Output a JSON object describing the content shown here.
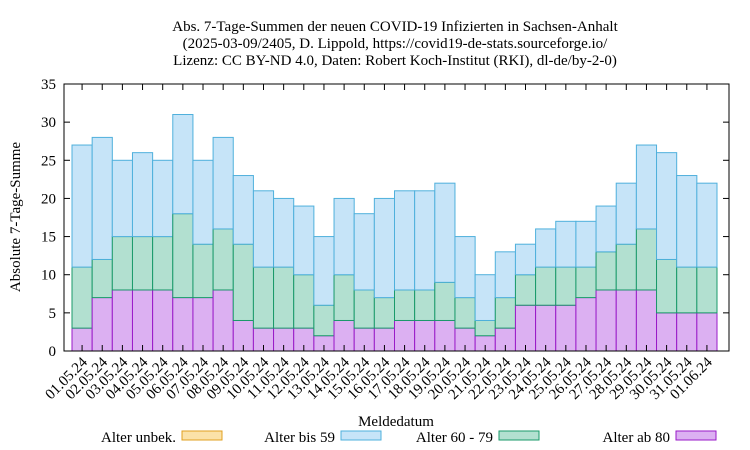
{
  "chart_data": {
    "type": "bar",
    "stacked": true,
    "title": [
      "Abs. 7-Tage-Summen der neuen COVID-19 Infizierten in Sachsen-Anhalt",
      "(2025-03-09/2405, D. Lippold, https://covid19-de-stats.sourceforge.io/",
      "Lizenz: CC BY-ND 4.0, Daten: Robert Koch-Institut (RKI), dl-de/by-2-0)"
    ],
    "xlabel": "Meldedatum",
    "ylabel": "Absolute 7-Tage-Summe",
    "ylim": [
      0,
      35
    ],
    "yticks": [
      0,
      5,
      10,
      15,
      20,
      25,
      30,
      35
    ],
    "grid": false,
    "legend_position": "bottom",
    "categories": [
      "01.05.24",
      "02.05.24",
      "03.05.24",
      "04.05.24",
      "05.05.24",
      "06.05.24",
      "07.05.24",
      "08.05.24",
      "09.05.24",
      "10.05.24",
      "11.05.24",
      "12.05.24",
      "13.05.24",
      "14.05.24",
      "15.05.24",
      "16.05.24",
      "17.05.24",
      "18.05.24",
      "19.05.24",
      "20.05.24",
      "21.05.24",
      "22.05.24",
      "23.05.24",
      "24.05.24",
      "25.05.24",
      "26.05.24",
      "27.05.24",
      "28.05.24",
      "29.05.24",
      "30.05.24",
      "31.05.24",
      "01.06.24"
    ],
    "series": [
      {
        "name": "Alter ab 80",
        "color": "#dcb0f2",
        "stroke": "#9a1ac8",
        "values": [
          3,
          7,
          8,
          8,
          8,
          7,
          7,
          8,
          4,
          3,
          3,
          3,
          2,
          4,
          3,
          3,
          4,
          4,
          4,
          3,
          2,
          3,
          6,
          6,
          6,
          7,
          8,
          8,
          8,
          5,
          5,
          5
        ]
      },
      {
        "name": "Alter 60 - 79",
        "color": "#b2e0d0",
        "stroke": "#1a9a6a",
        "values": [
          8,
          5,
          7,
          7,
          7,
          11,
          7,
          8,
          10,
          8,
          8,
          7,
          4,
          6,
          5,
          4,
          4,
          4,
          5,
          4,
          2,
          4,
          4,
          5,
          5,
          4,
          5,
          6,
          8,
          7,
          6,
          6
        ]
      },
      {
        "name": "Alter bis 59",
        "color": "#c6e4f8",
        "stroke": "#4fb0dc",
        "values": [
          16,
          16,
          10,
          11,
          10,
          13,
          11,
          12,
          9,
          10,
          9,
          9,
          9,
          10,
          10,
          13,
          13,
          13,
          13,
          8,
          6,
          6,
          4,
          5,
          6,
          6,
          6,
          8,
          11,
          14,
          12,
          11
        ]
      },
      {
        "name": "Alter unbek.",
        "color": "#fbe2a8",
        "stroke": "#e0a020",
        "values": [
          0,
          0,
          0,
          0,
          0,
          0,
          0,
          0,
          0,
          0,
          0,
          0,
          0,
          0,
          0,
          0,
          0,
          0,
          0,
          0,
          0,
          0,
          0,
          0,
          0,
          0,
          0,
          0,
          0,
          0,
          0,
          0
        ]
      }
    ],
    "legend": [
      "Alter unbek.",
      "Alter bis 59",
      "Alter 60 - 79",
      "Alter ab 80"
    ]
  }
}
